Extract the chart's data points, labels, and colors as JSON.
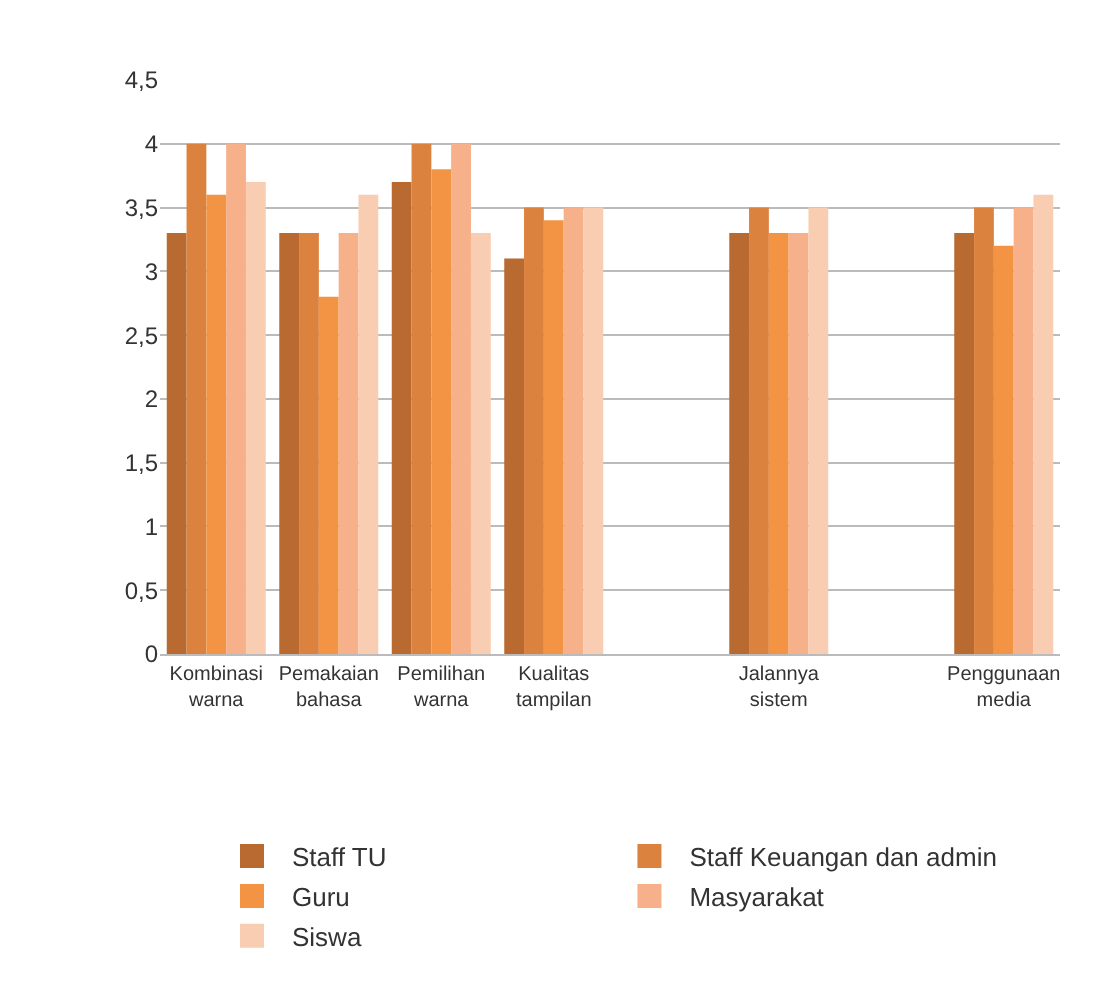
{
  "chart_data": {
    "type": "bar",
    "categories": [
      "Kombinasi warna",
      "Pemakaian bahasa",
      "Pemilihan warna",
      "Kualitas tampilan",
      null,
      "Jalannya sistem",
      null,
      "Penggunaan media"
    ],
    "series": [
      {
        "name": "Staff TU",
        "color": "#b86a30",
        "values": [
          3.3,
          3.3,
          3.7,
          3.1,
          null,
          3.3,
          null,
          3.3
        ]
      },
      {
        "name": "Staff Keuangan dan admin",
        "color": "#dc823f",
        "values": [
          4,
          3.3,
          4,
          3.5,
          null,
          3.5,
          null,
          3.5
        ]
      },
      {
        "name": "Guru",
        "color": "#f39444",
        "values": [
          3.6,
          2.8,
          3.8,
          3.4,
          null,
          3.3,
          null,
          3.2
        ]
      },
      {
        "name": "Masyarakat",
        "color": "#f6b08a",
        "values": [
          4,
          3.3,
          4,
          3.5,
          null,
          3.3,
          null,
          3.5
        ]
      },
      {
        "name": "Siswa",
        "color": "#f9cdb2",
        "values": [
          3.7,
          3.6,
          3.3,
          3.5,
          null,
          3.5,
          null,
          3.6
        ]
      }
    ],
    "ylim": [
      0,
      4.5
    ],
    "yticks": [
      0,
      {
        "value": 0.5,
        "label": "0,5"
      },
      1,
      {
        "value": 1.5,
        "label": "1,5"
      },
      2,
      {
        "value": 2.5,
        "label": "2,5"
      },
      3,
      {
        "value": 3.5,
        "label": "3,5"
      },
      4,
      {
        "value": 4.5,
        "label": "4,5"
      }
    ],
    "grid": "y",
    "legend": "bottom"
  }
}
